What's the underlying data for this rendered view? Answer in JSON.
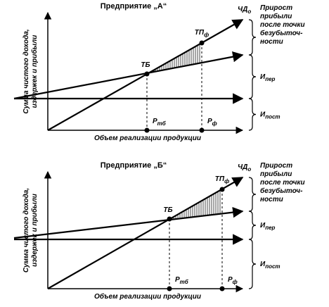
{
  "panels": [
    {
      "title": "Предприятие „А“",
      "y_label": [
        "Сумма чистого дохода,",
        "издержек и прибыли"
      ],
      "x_label": "Объем реализации продукции",
      "break_even": "ТБ",
      "actual_point": {
        "main": "ТП",
        "sub": "ф"
      },
      "revenue_line": {
        "main": "ЧД",
        "sub": "о"
      },
      "p_break_even": {
        "main": "P",
        "sub": "тб"
      },
      "p_actual": {
        "main": "P",
        "sub": "ф"
      },
      "profit_note": [
        "Прирост",
        "прибыли",
        "после точки",
        "безубыточ-",
        "ности"
      ],
      "variable_costs": {
        "main": "И",
        "sub": "пер"
      },
      "fixed_costs": {
        "main": "И",
        "sub": "пост"
      }
    },
    {
      "title": "Предприятие „Б“",
      "y_label": [
        "Сумма чистого дохода,",
        "издержек и прибыли"
      ],
      "x_label": "Объем реализации продукции",
      "break_even": "ТБ",
      "actual_point": {
        "main": "ТП",
        "sub": "ф"
      },
      "revenue_line": {
        "main": "ЧД",
        "sub": "о"
      },
      "p_break_even": {
        "main": "P",
        "sub": "тб"
      },
      "p_actual": {
        "main": "P",
        "sub": "ф"
      },
      "profit_note": [
        "Прирост",
        "прибыли",
        "после точки",
        "безубыточ-",
        "ности"
      ],
      "variable_costs": {
        "main": "И",
        "sub": "пер"
      },
      "fixed_costs": {
        "main": "И",
        "sub": "пост"
      }
    }
  ]
}
